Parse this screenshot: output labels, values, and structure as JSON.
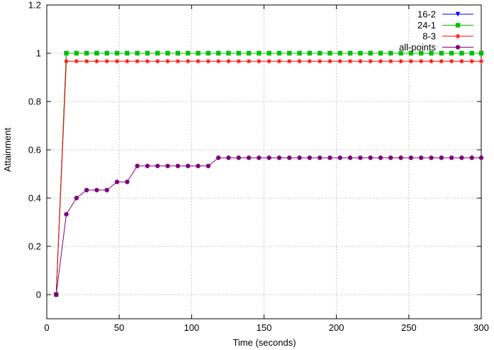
{
  "chart_data": {
    "type": "line",
    "xlabel": "Time (seconds)",
    "ylabel": "Attainment",
    "xlim": [
      0,
      300
    ],
    "ylim": [
      0,
      1.2
    ],
    "x_ticks": [
      0,
      50,
      100,
      150,
      200,
      250,
      300
    ],
    "y_ticks": [
      0,
      0.2,
      0.4,
      0.6,
      0.8,
      1,
      1.2
    ],
    "x_tick_labels": [
      "0",
      "50",
      "100",
      "150",
      "200",
      "250",
      "300"
    ],
    "y_tick_labels": [
      "0",
      "0.2",
      "0.4",
      "0.6",
      "0.8",
      "1",
      "1.2"
    ],
    "grid": true,
    "legend_position": "top-right",
    "x": [
      6.5,
      13.5,
      20.5,
      27.5,
      34.5,
      41.5,
      48.5,
      55.5,
      62.5,
      69.5,
      76.5,
      83.5,
      90.5,
      97.5,
      104.5,
      111.5,
      118.5,
      125.5,
      132.5,
      139.5,
      146.5,
      153.5,
      160.5,
      167.5,
      174.5,
      181.5,
      188.5,
      195.5,
      202.5,
      209.5,
      216.5,
      223.5,
      230.5,
      237.5,
      244.5,
      251.5,
      258.5,
      265.5,
      272.5,
      279.5,
      286.5,
      293.5,
      300
    ],
    "series": [
      {
        "name": "16-2",
        "color": "#0000ff",
        "marker": "triangle-down",
        "values": [
          0,
          1,
          1,
          1,
          1,
          1,
          1,
          1,
          1,
          1,
          1,
          1,
          1,
          1,
          1,
          1,
          1,
          1,
          1,
          1,
          1,
          1,
          1,
          1,
          1,
          1,
          1,
          1,
          1,
          1,
          1,
          1,
          1,
          1,
          1,
          1,
          1,
          1,
          1,
          1,
          1,
          1,
          1
        ]
      },
      {
        "name": "24-1",
        "color": "#00c000",
        "marker": "square",
        "values": [
          0,
          1,
          1,
          1,
          1,
          1,
          1,
          1,
          1,
          1,
          1,
          1,
          1,
          1,
          1,
          1,
          1,
          1,
          1,
          1,
          1,
          1,
          1,
          1,
          1,
          1,
          1,
          1,
          1,
          1,
          1,
          1,
          1,
          1,
          1,
          1,
          1,
          1,
          1,
          1,
          1,
          1,
          1
        ]
      },
      {
        "name": "8-3",
        "color": "#ff0000",
        "marker": "star",
        "values": [
          0,
          0.967,
          0.967,
          0.967,
          0.967,
          0.967,
          0.967,
          0.967,
          0.967,
          0.967,
          0.967,
          0.967,
          0.967,
          0.967,
          0.967,
          0.967,
          0.967,
          0.967,
          0.967,
          0.967,
          0.967,
          0.967,
          0.967,
          0.967,
          0.967,
          0.967,
          0.967,
          0.967,
          0.967,
          0.967,
          0.967,
          0.967,
          0.967,
          0.967,
          0.967,
          0.967,
          0.967,
          0.967,
          0.967,
          0.967,
          0.967,
          0.967,
          0.967
        ]
      },
      {
        "name": "all-points",
        "color": "#800080",
        "marker": "circle",
        "values": [
          0,
          0.333,
          0.4,
          0.433,
          0.433,
          0.433,
          0.467,
          0.467,
          0.533,
          0.533,
          0.533,
          0.533,
          0.533,
          0.533,
          0.533,
          0.533,
          0.567,
          0.567,
          0.567,
          0.567,
          0.567,
          0.567,
          0.567,
          0.567,
          0.567,
          0.567,
          0.567,
          0.567,
          0.567,
          0.567,
          0.567,
          0.567,
          0.567,
          0.567,
          0.567,
          0.567,
          0.567,
          0.567,
          0.567,
          0.567,
          0.567,
          0.567,
          0.567
        ]
      }
    ]
  }
}
